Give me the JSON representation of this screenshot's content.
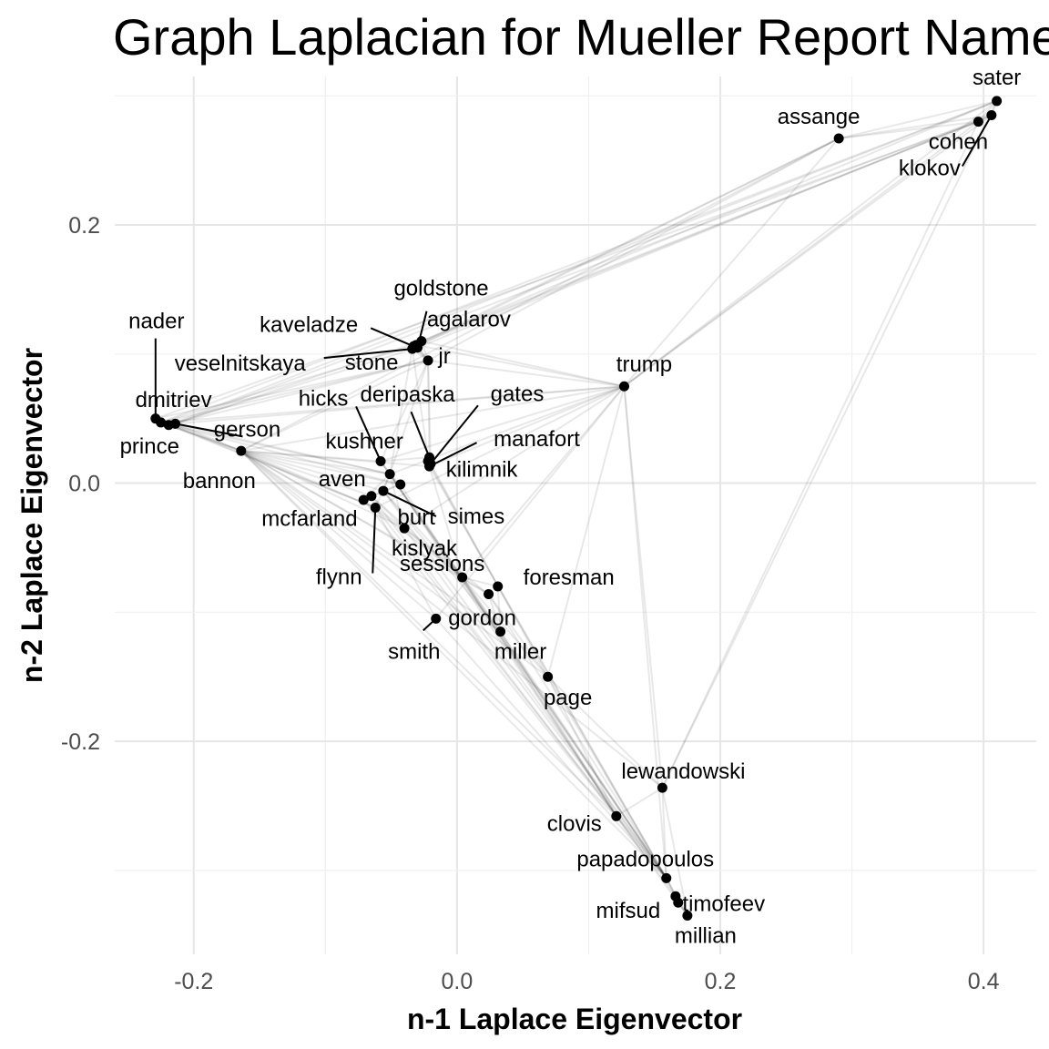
{
  "chart_data": {
    "type": "scatter",
    "title": "Graph Laplacian for Mueller Report Names",
    "xlabel": "n-1 Laplace Eigenvector",
    "ylabel": "n-2 Laplace Eigenvector",
    "xlim": [
      -0.26,
      0.44
    ],
    "ylim": [
      -0.365,
      0.315
    ],
    "x_ticks": [
      {
        "value": -0.2,
        "label": "-0.2"
      },
      {
        "value": 0.0,
        "label": "0.0"
      },
      {
        "value": 0.2,
        "label": "0.2"
      },
      {
        "value": 0.4,
        "label": "0.4"
      }
    ],
    "y_ticks": [
      {
        "value": -0.2,
        "label": "-0.2"
      },
      {
        "value": 0.0,
        "label": "0.0"
      },
      {
        "value": 0.2,
        "label": "0.2"
      }
    ],
    "grid": true,
    "legend": "none",
    "colors": {
      "points": "#000000",
      "edges": "#bdbdbd",
      "grid": "#e6e6e6"
    },
    "points": [
      {
        "name": "sater",
        "x": 0.41,
        "y": 0.296
      },
      {
        "name": "cohen",
        "x": 0.396,
        "y": 0.28
      },
      {
        "name": "klokov",
        "x": 0.406,
        "y": 0.285
      },
      {
        "name": "assange",
        "x": 0.29,
        "y": 0.267
      },
      {
        "name": "trump",
        "x": 0.127,
        "y": 0.075
      },
      {
        "name": "goldstone",
        "x": -0.03,
        "y": 0.105
      },
      {
        "name": "agalarov",
        "x": -0.027,
        "y": 0.11
      },
      {
        "name": "kaveladze",
        "x": -0.033,
        "y": 0.106
      },
      {
        "name": "veselnitskaya",
        "x": -0.034,
        "y": 0.104
      },
      {
        "name": "stone",
        "x": -0.031,
        "y": 0.107
      },
      {
        "name": "jr",
        "x": -0.022,
        "y": 0.095
      },
      {
        "name": "nader",
        "x": -0.229,
        "y": 0.05
      },
      {
        "name": "dmitriev",
        "x": -0.225,
        "y": 0.047
      },
      {
        "name": "prince",
        "x": -0.219,
        "y": 0.045
      },
      {
        "name": "gerson",
        "x": -0.214,
        "y": 0.046
      },
      {
        "name": "bannon",
        "x": -0.164,
        "y": 0.025
      },
      {
        "name": "hicks",
        "x": -0.058,
        "y": 0.017
      },
      {
        "name": "deripaska",
        "x": -0.021,
        "y": 0.02
      },
      {
        "name": "gates",
        "x": -0.02,
        "y": 0.015
      },
      {
        "name": "manafort",
        "x": -0.021,
        "y": 0.013
      },
      {
        "name": "kilimnik",
        "x": -0.022,
        "y": 0.017
      },
      {
        "name": "kushner",
        "x": -0.051,
        "y": 0.007
      },
      {
        "name": "aven",
        "x": -0.043,
        "y": -0.001
      },
      {
        "name": "simes",
        "x": -0.056,
        "y": -0.006
      },
      {
        "name": "mcfarland",
        "x": -0.065,
        "y": -0.01
      },
      {
        "name": "flynn",
        "x": -0.062,
        "y": -0.019
      },
      {
        "name": "burt",
        "x": -0.071,
        "y": -0.013
      },
      {
        "name": "kislyak",
        "x": -0.04,
        "y": -0.035
      },
      {
        "name": "sessions",
        "x": 0.004,
        "y": -0.073
      },
      {
        "name": "foresman",
        "x": 0.031,
        "y": -0.08
      },
      {
        "name": "gordon",
        "x": 0.024,
        "y": -0.086
      },
      {
        "name": "smith",
        "x": -0.016,
        "y": -0.105
      },
      {
        "name": "miller",
        "x": 0.033,
        "y": -0.115
      },
      {
        "name": "page",
        "x": 0.069,
        "y": -0.15
      },
      {
        "name": "lewandowski",
        "x": 0.156,
        "y": -0.236
      },
      {
        "name": "clovis",
        "x": 0.121,
        "y": -0.258
      },
      {
        "name": "papadopoulos",
        "x": 0.159,
        "y": -0.306
      },
      {
        "name": "mifsud",
        "x": 0.166,
        "y": -0.32
      },
      {
        "name": "timofeev",
        "x": 0.168,
        "y": -0.325
      },
      {
        "name": "millian",
        "x": 0.175,
        "y": -0.335
      }
    ],
    "edges": [
      [
        "sater",
        "assange"
      ],
      [
        "sater",
        "cohen"
      ],
      [
        "sater",
        "klokov"
      ],
      [
        "cohen",
        "klokov"
      ],
      [
        "assange",
        "cohen"
      ],
      [
        "assange",
        "klokov"
      ],
      [
        "sater",
        "trump"
      ],
      [
        "cohen",
        "trump"
      ],
      [
        "klokov",
        "trump"
      ],
      [
        "assange",
        "trump"
      ],
      [
        "sater",
        "agalarov"
      ],
      [
        "cohen",
        "agalarov"
      ],
      [
        "klokov",
        "goldstone"
      ],
      [
        "cohen",
        "stone"
      ],
      [
        "assange",
        "stone"
      ],
      [
        "assange",
        "jr"
      ],
      [
        "sater",
        "dmitriev"
      ],
      [
        "cohen",
        "nader"
      ],
      [
        "sater",
        "prince"
      ],
      [
        "klokov",
        "gerson"
      ],
      [
        "assange",
        "veselnitskaya"
      ],
      [
        "cohen",
        "lewandowski"
      ],
      [
        "sater",
        "lewandowski"
      ],
      [
        "assange",
        "bannon"
      ],
      [
        "trump",
        "agalarov"
      ],
      [
        "trump",
        "jr"
      ],
      [
        "trump",
        "stone"
      ],
      [
        "trump",
        "kushner"
      ],
      [
        "trump",
        "bannon"
      ],
      [
        "trump",
        "page"
      ],
      [
        "trump",
        "manafort"
      ],
      [
        "trump",
        "sessions"
      ],
      [
        "trump",
        "dmitriev"
      ],
      [
        "trump",
        "hicks"
      ],
      [
        "trump",
        "lewandowski"
      ],
      [
        "trump",
        "smith"
      ],
      [
        "trump",
        "papadopoulos"
      ],
      [
        "trump",
        "flynn"
      ],
      [
        "trump",
        "gerson"
      ],
      [
        "trump",
        "kislyak"
      ],
      [
        "goldstone",
        "agalarov"
      ],
      [
        "goldstone",
        "kaveladze"
      ],
      [
        "goldstone",
        "veselnitskaya"
      ],
      [
        "goldstone",
        "jr"
      ],
      [
        "agalarov",
        "kaveladze"
      ],
      [
        "agalarov",
        "jr"
      ],
      [
        "veselnitskaya",
        "jr"
      ],
      [
        "kaveladze",
        "jr"
      ],
      [
        "stone",
        "jr"
      ],
      [
        "jr",
        "kushner"
      ],
      [
        "jr",
        "manafort"
      ],
      [
        "jr",
        "bannon"
      ],
      [
        "jr",
        "nader"
      ],
      [
        "jr",
        "dmitriev"
      ],
      [
        "jr",
        "hicks"
      ],
      [
        "jr",
        "gates"
      ],
      [
        "veselnitskaya",
        "kushner"
      ],
      [
        "veselnitskaya",
        "manafort"
      ],
      [
        "goldstone",
        "prince"
      ],
      [
        "agalarov",
        "gerson"
      ],
      [
        "nader",
        "dmitriev"
      ],
      [
        "nader",
        "prince"
      ],
      [
        "dmitriev",
        "prince"
      ],
      [
        "dmitriev",
        "gerson"
      ],
      [
        "prince",
        "gerson"
      ],
      [
        "nader",
        "bannon"
      ],
      [
        "dmitriev",
        "bannon"
      ],
      [
        "prince",
        "bannon"
      ],
      [
        "gerson",
        "bannon"
      ],
      [
        "dmitriev",
        "kushner"
      ],
      [
        "gerson",
        "kushner"
      ],
      [
        "dmitriev",
        "aven"
      ],
      [
        "nader",
        "flynn"
      ],
      [
        "prince",
        "flynn"
      ],
      [
        "dmitriev",
        "stone"
      ],
      [
        "prince",
        "jr"
      ],
      [
        "bannon",
        "kushner"
      ],
      [
        "bannon",
        "flynn"
      ],
      [
        "bannon",
        "mcfarland"
      ],
      [
        "bannon",
        "hicks"
      ],
      [
        "bannon",
        "aven"
      ],
      [
        "bannon",
        "simes"
      ],
      [
        "bannon",
        "sessions"
      ],
      [
        "bannon",
        "manafort"
      ],
      [
        "bannon",
        "miller"
      ],
      [
        "bannon",
        "page"
      ],
      [
        "bannon",
        "gordon"
      ],
      [
        "bannon",
        "lewandowski"
      ],
      [
        "bannon",
        "clovis"
      ],
      [
        "bannon",
        "papadopoulos"
      ],
      [
        "bannon",
        "smith"
      ],
      [
        "bannon",
        "kislyak"
      ],
      [
        "hicks",
        "kushner"
      ],
      [
        "hicks",
        "deripaska"
      ],
      [
        "hicks",
        "sessions"
      ],
      [
        "deripaska",
        "manafort"
      ],
      [
        "deripaska",
        "kilimnik"
      ],
      [
        "gates",
        "manafort"
      ],
      [
        "gates",
        "kilimnik"
      ],
      [
        "manafort",
        "kilimnik"
      ],
      [
        "manafort",
        "sessions"
      ],
      [
        "gates",
        "page"
      ],
      [
        "kilimnik",
        "foresman"
      ],
      [
        "kushner",
        "aven"
      ],
      [
        "kushner",
        "simes"
      ],
      [
        "kushner",
        "flynn"
      ],
      [
        "kushner",
        "kislyak"
      ],
      [
        "kushner",
        "sessions"
      ],
      [
        "kushner",
        "burt"
      ],
      [
        "aven",
        "simes"
      ],
      [
        "aven",
        "burt"
      ],
      [
        "flynn",
        "mcfarland"
      ],
      [
        "flynn",
        "kislyak"
      ],
      [
        "mcfarland",
        "kislyak"
      ],
      [
        "simes",
        "burt"
      ],
      [
        "simes",
        "sessions"
      ],
      [
        "burt",
        "sessions"
      ],
      [
        "mcfarland",
        "sessions"
      ],
      [
        "kislyak",
        "sessions"
      ],
      [
        "kislyak",
        "gordon"
      ],
      [
        "simes",
        "miller"
      ],
      [
        "sessions",
        "gordon"
      ],
      [
        "sessions",
        "foresman"
      ],
      [
        "sessions",
        "miller"
      ],
      [
        "sessions",
        "page"
      ],
      [
        "sessions",
        "clovis"
      ],
      [
        "sessions",
        "papadopoulos"
      ],
      [
        "gordon",
        "page"
      ],
      [
        "gordon",
        "miller"
      ],
      [
        "foresman",
        "miller"
      ],
      [
        "miller",
        "papadopoulos"
      ],
      [
        "miller",
        "clovis"
      ],
      [
        "smith",
        "flynn"
      ],
      [
        "page",
        "clovis"
      ],
      [
        "page",
        "papadopoulos"
      ],
      [
        "page",
        "lewandowski"
      ],
      [
        "clovis",
        "papadopoulos"
      ],
      [
        "clovis",
        "lewandowski"
      ],
      [
        "clovis",
        "mifsud"
      ],
      [
        "clovis",
        "millian"
      ],
      [
        "papadopoulos",
        "mifsud"
      ],
      [
        "papadopoulos",
        "timofeev"
      ],
      [
        "papadopoulos",
        "millian"
      ],
      [
        "mifsud",
        "timofeev"
      ],
      [
        "mifsud",
        "millian"
      ],
      [
        "lewandowski",
        "papadopoulos"
      ],
      [
        "lewandowski",
        "millian"
      ],
      [
        "timofeev",
        "millian"
      ],
      [
        "kushner",
        "papadopoulos"
      ],
      [
        "flynn",
        "papadopoulos"
      ],
      [
        "manafort",
        "papadopoulos"
      ],
      [
        "kislyak",
        "papadopoulos"
      ],
      [
        "aven",
        "clovis"
      ],
      [
        "hicks",
        "papadopoulos"
      ],
      [
        "mcfarland",
        "clovis"
      ],
      [
        "kushner",
        "clovis"
      ],
      [
        "simes",
        "papadopoulos"
      ],
      [
        "burt",
        "clovis"
      ],
      [
        "gordon",
        "papadopoulos"
      ],
      [
        "foresman",
        "papadopoulos"
      ],
      [
        "smith",
        "papadopoulos"
      ]
    ],
    "labels": [
      {
        "name": "sater",
        "dx": 0,
        "dy": -18,
        "anchor": "middle"
      },
      {
        "name": "cohen",
        "dx": -22,
        "dy": 30,
        "anchor": "middle"
      },
      {
        "name": "klokov",
        "dx": -68,
        "dy": 66,
        "anchor": "middle",
        "leader": [
          -32,
          56
        ]
      },
      {
        "name": "assange",
        "dx": -22,
        "dy": -16,
        "anchor": "middle"
      },
      {
        "name": "trump",
        "dx": 22,
        "dy": -16,
        "anchor": "middle"
      },
      {
        "name": "goldstone",
        "dx": 26,
        "dy": -57,
        "anchor": "middle",
        "leader": [
          10,
          -40
        ]
      },
      {
        "name": "agalarov",
        "dx": 52,
        "dy": -16,
        "anchor": "middle"
      },
      {
        "name": "kaveladze",
        "dx": -115,
        "dy": -16,
        "anchor": "middle",
        "leader": [
          -47,
          -20
        ]
      },
      {
        "name": "veselnitskaya",
        "dx": -189,
        "dy": 24,
        "anchor": "middle",
        "leader": [
          -97,
          10
        ]
      },
      {
        "name": "stone",
        "dx": -49,
        "dy": 27,
        "anchor": "middle"
      },
      {
        "name": "jr",
        "dx": 18,
        "dy": 3,
        "anchor": "middle"
      },
      {
        "name": "nader",
        "dx": 1,
        "dy": -99,
        "anchor": "middle",
        "leader": [
          0,
          -88
        ]
      },
      {
        "name": "dmitriev",
        "dx": 14,
        "dy": -17,
        "anchor": "middle"
      },
      {
        "name": "prince",
        "dx": -21,
        "dy": 31,
        "anchor": "middle"
      },
      {
        "name": "gerson",
        "dx": 79,
        "dy": 14,
        "anchor": "middle",
        "leader": [
          74,
          14
        ]
      },
      {
        "name": "bannon",
        "dx": -24,
        "dy": 41,
        "anchor": "middle"
      },
      {
        "name": "hicks",
        "dx": -63,
        "dy": -61,
        "anchor": "middle",
        "leader": [
          -27,
          -60
        ]
      },
      {
        "name": "deripaska",
        "dx": -24,
        "dy": -61,
        "anchor": "middle",
        "leader": [
          -20,
          -50
        ]
      },
      {
        "name": "gates",
        "dx": 95,
        "dy": -69,
        "anchor": "middle",
        "leader": [
          52,
          -64
        ]
      },
      {
        "name": "manafort",
        "dx": 118,
        "dy": -22,
        "anchor": "middle",
        "leader": [
          52,
          -26
        ]
      },
      {
        "name": "kilimnik",
        "dx": 59,
        "dy": 17,
        "anchor": "middle"
      },
      {
        "name": "kushner",
        "dx": -28,
        "dy": -28,
        "anchor": "middle"
      },
      {
        "name": "aven",
        "dx": -64,
        "dy": 2,
        "anchor": "middle"
      },
      {
        "name": "simes",
        "dx": 102,
        "dy": 36,
        "anchor": "middle",
        "leader": [
          58,
          28
        ]
      },
      {
        "name": "mcfarland",
        "dx": -68,
        "dy": 33,
        "anchor": "middle"
      },
      {
        "name": "flynn",
        "dx": -40,
        "dy": 84,
        "anchor": "middle",
        "leader": [
          -3,
          72
        ]
      },
      {
        "name": "burt",
        "dx": 58,
        "dy": 27,
        "anchor": "middle"
      },
      {
        "name": "kislyak",
        "dx": 22,
        "dy": 30,
        "anchor": "middle"
      },
      {
        "name": "sessions",
        "dx": -22,
        "dy": -7,
        "anchor": "middle"
      },
      {
        "name": "foresman",
        "dx": 78,
        "dy": -2,
        "anchor": "middle"
      },
      {
        "name": "gordon",
        "dx": -7,
        "dy": 34,
        "anchor": "middle"
      },
      {
        "name": "smith",
        "dx": -24,
        "dy": 44,
        "anchor": "middle",
        "leader": [
          -14,
          13
        ]
      },
      {
        "name": "miller",
        "dx": 22,
        "dy": 30,
        "anchor": "middle"
      },
      {
        "name": "page",
        "dx": 22,
        "dy": 31,
        "anchor": "middle"
      },
      {
        "name": "lewandowski",
        "dx": 23,
        "dy": -10,
        "anchor": "middle"
      },
      {
        "name": "clovis",
        "dx": -46,
        "dy": 16,
        "anchor": "middle"
      },
      {
        "name": "papadopoulos",
        "dx": -23,
        "dy": -13,
        "anchor": "middle"
      },
      {
        "name": "mifsud",
        "dx": -52,
        "dy": 24,
        "anchor": "middle"
      },
      {
        "name": "timofeev",
        "dx": 50,
        "dy": 9,
        "anchor": "middle"
      },
      {
        "name": "millian",
        "dx": 20,
        "dy": 30,
        "anchor": "middle"
      }
    ]
  }
}
